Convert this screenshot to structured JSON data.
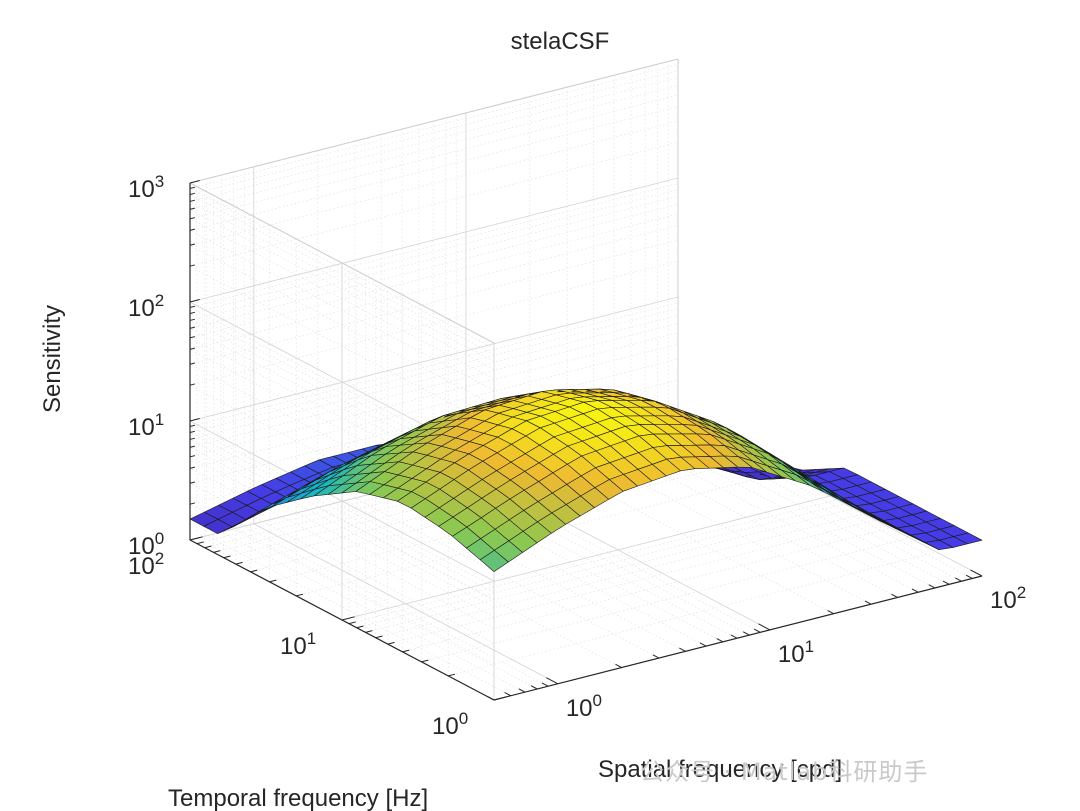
{
  "chart_data": {
    "type": "surface",
    "title": "stelaCSF",
    "xlabel": "Spatial frequency [cpd]",
    "ylabel": "Temporal frequency [Hz]",
    "zlabel": "Sensitivity",
    "scale": {
      "x": "log",
      "y": "log",
      "z": "log"
    },
    "xlim": [
      0.5,
      100
    ],
    "ylim": [
      1,
      100
    ],
    "zlim": [
      1,
      1000
    ],
    "x_ticks": [
      {
        "base": "10",
        "exp": "0"
      },
      {
        "base": "10",
        "exp": "1"
      },
      {
        "base": "10",
        "exp": "2"
      }
    ],
    "y_ticks": [
      {
        "base": "10",
        "exp": "0"
      },
      {
        "base": "10",
        "exp": "1"
      },
      {
        "base": "10",
        "exp": "2"
      }
    ],
    "z_ticks": [
      {
        "base": "10",
        "exp": "0"
      },
      {
        "base": "10",
        "exp": "1"
      },
      {
        "base": "10",
        "exp": "2"
      },
      {
        "base": "10",
        "exp": "3"
      }
    ],
    "colormap": "parula",
    "colors": {
      "low": "#3e26a8",
      "mid": "#15b8c0",
      "high": "#f9fb0e"
    },
    "grid": true,
    "surface_samples": {
      "spatial_frequency_cpd": [
        0.5,
        1,
        2,
        4,
        8,
        16,
        32,
        64
      ],
      "temporal_frequency_hz": [
        1,
        2,
        4,
        8,
        16,
        32,
        64
      ],
      "sensitivity": [
        [
          12,
          20,
          30,
          34,
          26,
          13,
          5,
          2
        ],
        [
          16,
          26,
          40,
          45,
          33,
          16,
          5,
          2
        ],
        [
          18,
          30,
          45,
          49,
          36,
          17,
          6,
          2
        ],
        [
          14,
          24,
          36,
          39,
          29,
          14,
          5,
          2
        ],
        [
          8,
          14,
          20,
          21,
          16,
          8,
          3,
          1.2
        ],
        [
          4,
          6,
          8,
          8,
          6,
          3,
          1.5,
          1
        ],
        [
          1.5,
          2,
          2.5,
          2.5,
          2,
          1.3,
          1,
          1
        ]
      ]
    }
  },
  "watermark": "公众号 · Matlab科研助手"
}
